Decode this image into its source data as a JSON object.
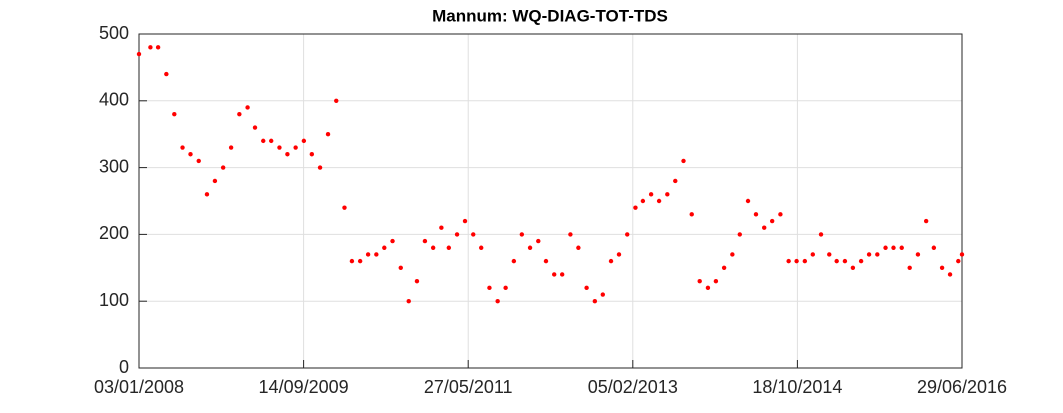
{
  "chart_data": {
    "type": "scatter",
    "title": "Mannum: WQ-DIAG-TOT-TDS",
    "x": [
      "03/01/2008",
      "15/02/2008",
      "15/03/2008",
      "15/04/2008",
      "15/05/2008",
      "15/06/2008",
      "15/07/2008",
      "15/08/2008",
      "15/09/2008",
      "15/10/2008",
      "15/11/2008",
      "15/12/2008",
      "15/01/2009",
      "15/02/2009",
      "15/03/2009",
      "15/04/2009",
      "15/05/2009",
      "15/06/2009",
      "15/07/2009",
      "15/08/2009",
      "15/09/2009",
      "15/10/2009",
      "15/11/2009",
      "15/12/2009",
      "15/01/2010",
      "15/02/2010",
      "15/03/2010",
      "15/04/2010",
      "15/05/2010",
      "15/06/2010",
      "15/07/2010",
      "15/08/2010",
      "15/09/2010",
      "15/10/2010",
      "15/11/2010",
      "15/12/2010",
      "15/01/2011",
      "15/02/2011",
      "15/03/2011",
      "15/04/2011",
      "15/05/2011",
      "15/06/2011",
      "15/07/2011",
      "15/08/2011",
      "15/09/2011",
      "15/10/2011",
      "15/11/2011",
      "15/12/2011",
      "15/01/2012",
      "15/02/2012",
      "15/03/2012",
      "15/04/2012",
      "15/05/2012",
      "15/06/2012",
      "15/07/2012",
      "15/08/2012",
      "15/09/2012",
      "15/10/2012",
      "15/11/2012",
      "15/12/2012",
      "15/01/2013",
      "15/02/2013",
      "15/03/2013",
      "15/04/2013",
      "15/05/2013",
      "15/06/2013",
      "15/07/2013",
      "15/08/2013",
      "15/09/2013",
      "15/10/2013",
      "15/11/2013",
      "15/12/2013",
      "15/01/2014",
      "15/02/2014",
      "15/03/2014",
      "15/04/2014",
      "15/05/2014",
      "15/06/2014",
      "15/07/2014",
      "15/08/2014",
      "15/09/2014",
      "15/10/2014",
      "15/11/2014",
      "15/12/2014",
      "15/01/2015",
      "15/02/2015",
      "15/03/2015",
      "15/04/2015",
      "15/05/2015",
      "15/06/2015",
      "15/07/2015",
      "15/08/2015",
      "15/09/2015",
      "15/10/2015",
      "15/11/2015",
      "15/12/2015",
      "15/01/2016",
      "15/02/2016",
      "15/03/2016",
      "15/04/2016",
      "15/05/2016",
      "15/06/2016",
      "29/06/2016"
    ],
    "series": [
      {
        "color": "#ff0000",
        "values": [
          470,
          480,
          480,
          440,
          380,
          330,
          320,
          310,
          260,
          280,
          300,
          330,
          380,
          390,
          360,
          340,
          340,
          330,
          320,
          330,
          340,
          320,
          300,
          350,
          400,
          240,
          160,
          160,
          170,
          170,
          180,
          190,
          150,
          100,
          130,
          190,
          180,
          210,
          180,
          200,
          220,
          200,
          180,
          120,
          100,
          120,
          160,
          200,
          180,
          190,
          160,
          140,
          140,
          200,
          180,
          120,
          100,
          110,
          160,
          170,
          200,
          240,
          250,
          260,
          250,
          260,
          280,
          310,
          230,
          130,
          120,
          130,
          150,
          170,
          200,
          250,
          230,
          210,
          220,
          230,
          160,
          160,
          160,
          170,
          200,
          170,
          160,
          160,
          150,
          160,
          170,
          170,
          180,
          180,
          180,
          150,
          170,
          220,
          180,
          150,
          140,
          160,
          170
        ]
      }
    ],
    "xlim": [
      "03/01/2008",
      "29/06/2016"
    ],
    "xticks": [
      "03/01/2008",
      "14/09/2009",
      "27/05/2011",
      "05/02/2013",
      "18/10/2014",
      "29/06/2016"
    ],
    "ylim": [
      0,
      500
    ],
    "yticks": [
      0,
      100,
      200,
      300,
      400,
      500
    ],
    "grid": true
  }
}
